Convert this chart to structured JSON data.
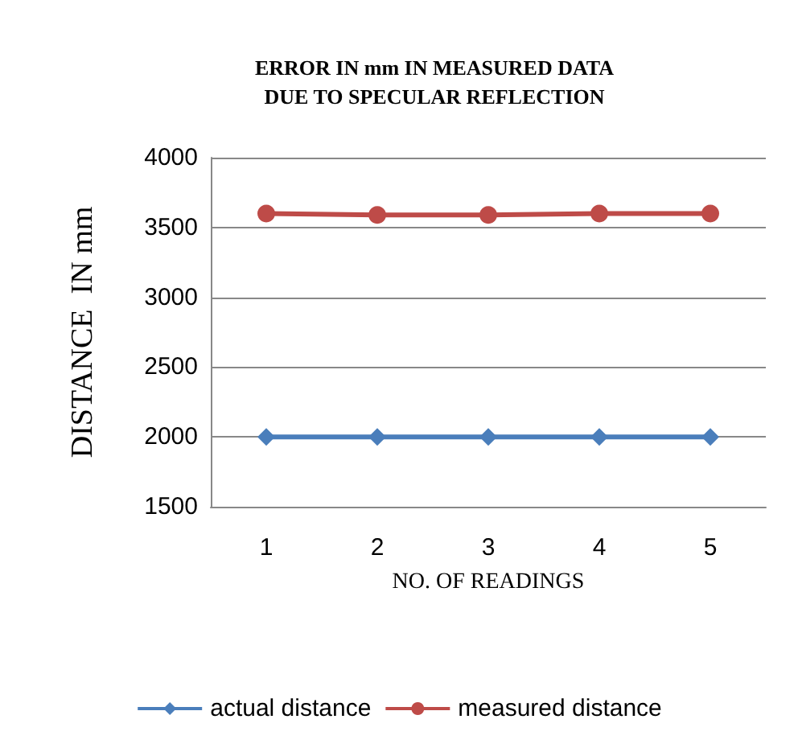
{
  "chart_data": {
    "type": "line",
    "title": "ERROR IN mm IN MEASURED DATA\nDUE TO SPECULAR REFLECTION",
    "xlabel": "NO. OF READINGS",
    "ylabel": "DISTANCE  IN mm",
    "categories": [
      "1",
      "2",
      "3",
      "4",
      "5"
    ],
    "series": [
      {
        "name": "actual distance",
        "color": "#4a7ebb",
        "marker": "diamond",
        "values": [
          2000,
          2000,
          2000,
          2000,
          2000
        ]
      },
      {
        "name": "measured distance",
        "color": "#be4b48",
        "marker": "circle",
        "values": [
          3600,
          3590,
          3590,
          3600,
          3600
        ]
      }
    ],
    "ylim": [
      1500,
      4000
    ],
    "yticks": [
      1500,
      2000,
      2500,
      3000,
      3500,
      4000
    ],
    "grid": "y",
    "legend": "bottom"
  }
}
